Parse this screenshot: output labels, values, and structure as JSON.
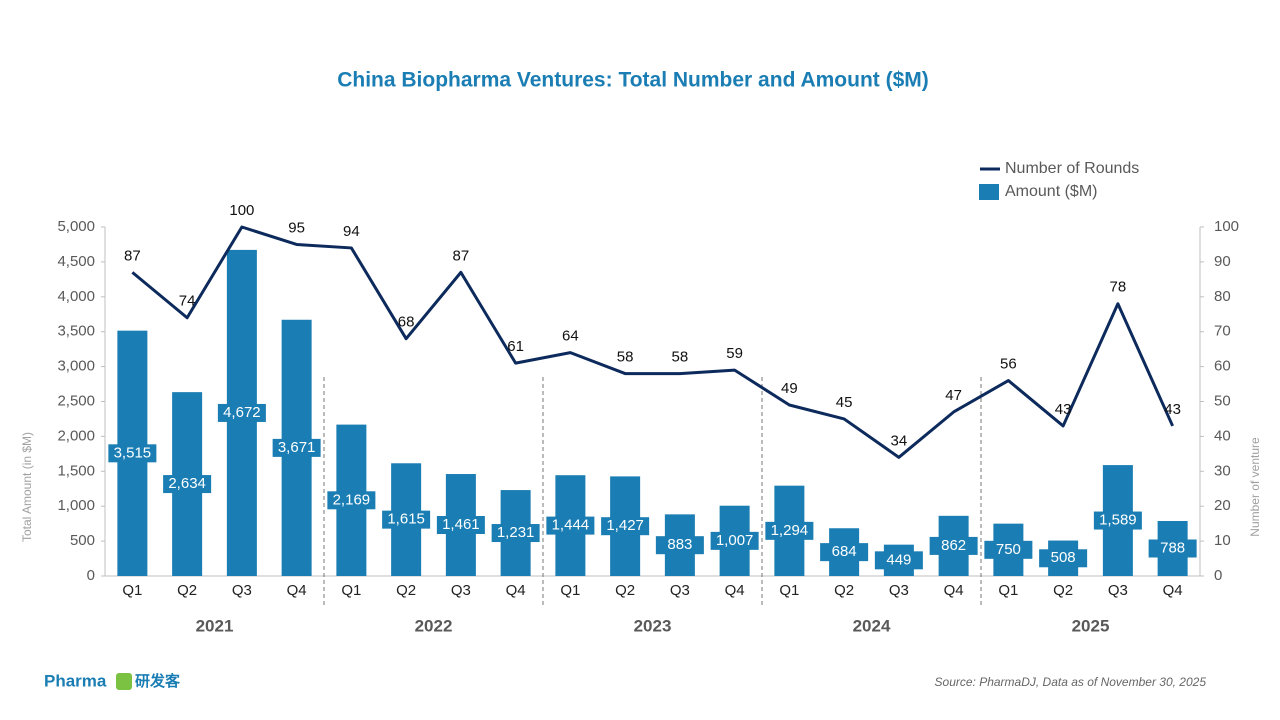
{
  "chart_data": {
    "type": "bar-line",
    "title": "China Biopharma Ventures: Total Number and Amount ($M)",
    "categories": [
      "Q1",
      "Q2",
      "Q3",
      "Q4",
      "Q1",
      "Q2",
      "Q3",
      "Q4",
      "Q1",
      "Q2",
      "Q3",
      "Q4",
      "Q1",
      "Q2",
      "Q3",
      "Q4",
      "Q1",
      "Q2",
      "Q3",
      "Q4"
    ],
    "years": [
      "2021",
      "2022",
      "2023",
      "2024",
      "2025"
    ],
    "y_label": "Total Amount (in $M)",
    "y2_label": "Number of venture",
    "ylim": [
      0,
      5000
    ],
    "yticks": [
      0,
      500,
      {
        "value": 1000,
        "label": "1,000"
      },
      {
        "value": 1500,
        "label": "1,500"
      },
      {
        "value": 2000,
        "label": "2,000"
      },
      {
        "value": 2500,
        "label": "2,500"
      },
      {
        "value": 3000,
        "label": "3,000"
      },
      {
        "value": 3500,
        "label": "3,500"
      },
      {
        "value": 4000,
        "label": "4,000"
      },
      {
        "value": 4500,
        "label": "4,500"
      },
      {
        "value": 5000,
        "label": "5,000"
      }
    ],
    "y2lim": [
      0,
      100
    ],
    "y2ticks": [
      0,
      10,
      20,
      30,
      40,
      50,
      60,
      70,
      80,
      90,
      100
    ],
    "legend": "top-right",
    "series": [
      {
        "name": "Number of Rounds",
        "type": "line",
        "axis": "y2",
        "color": "#0d2a5c",
        "values": [
          87,
          74,
          100,
          95,
          94,
          68,
          87,
          61,
          64,
          58,
          58,
          59,
          49,
          45,
          34,
          47,
          56,
          43,
          78,
          43
        ]
      },
      {
        "name": "Amount ($M)",
        "type": "bar",
        "color": "#1a7db3",
        "values": [
          3515,
          2634,
          4672,
          3671,
          2169,
          1615,
          1461,
          1231,
          1444,
          1427,
          883,
          1007,
          1294,
          684,
          449,
          862,
          750,
          508,
          1589,
          788
        ],
        "value_labels": [
          "3,515",
          "2,634",
          "4,672",
          "3,671",
          "2,169",
          "1,615",
          "1,461",
          "1,231",
          "1,444",
          "1,427",
          "883",
          "1,007",
          "1,294",
          "684",
          "449",
          "862",
          "750",
          "508",
          "1,589",
          "788"
        ]
      }
    ],
    "source": "Source: PharmaDJ, Data as of November 30, 2025",
    "brand": "Pharma",
    "brand_cn": "研发客"
  }
}
